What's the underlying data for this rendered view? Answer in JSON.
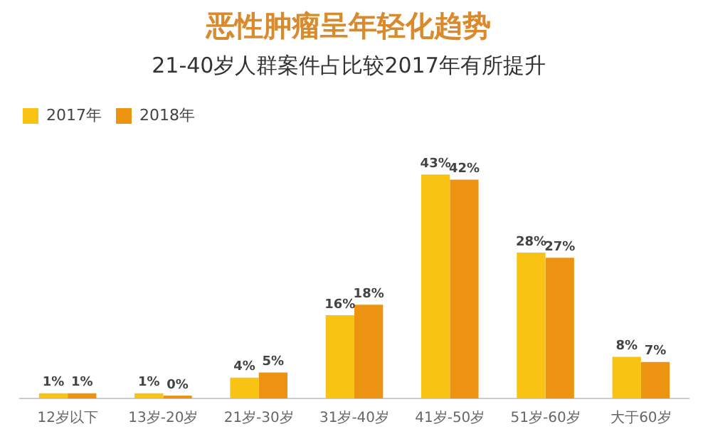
{
  "chart_data": {
    "type": "bar",
    "title": "恶性肿瘤呈年轻化趋势",
    "subtitle": "21-40岁人群案件占比较2017年有所提升",
    "categories": [
      "12岁以下",
      "13岁-20岁",
      "21岁-30岁",
      "31岁-40岁",
      "41岁-50岁",
      "51岁-60岁",
      "大于60岁"
    ],
    "series": [
      {
        "name": "2017年",
        "color": "#f8c313",
        "values": [
          1,
          1,
          4,
          16,
          43,
          28,
          8
        ],
        "value_labels": [
          "1%",
          "1%",
          "4%",
          "16%",
          "43%",
          "28%",
          "8%"
        ]
      },
      {
        "name": "2018年",
        "color": "#ec9412",
        "values": [
          1,
          0,
          5,
          18,
          42,
          27,
          7
        ],
        "value_labels": [
          "1%",
          "0%",
          "5%",
          "18%",
          "42%",
          "27%",
          "7%"
        ]
      }
    ],
    "tick_labels": "x",
    "grid": false,
    "legend": "top left"
  }
}
